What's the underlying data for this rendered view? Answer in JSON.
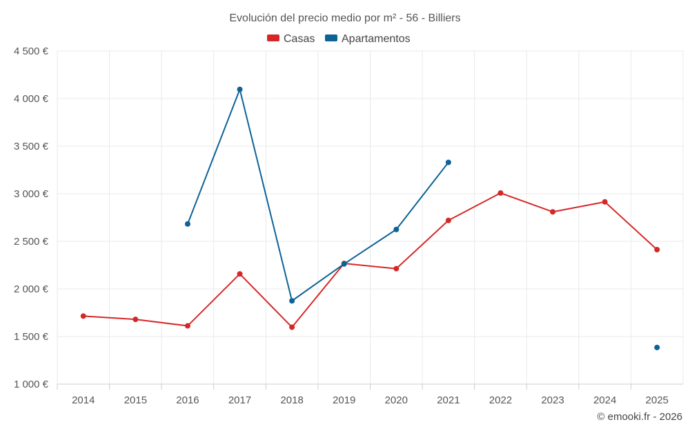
{
  "chart_data": {
    "type": "line",
    "title": "Evolución del precio medio por m² - 56 - Billiers",
    "categories": [
      "2014",
      "2015",
      "2016",
      "2017",
      "2018",
      "2019",
      "2020",
      "2021",
      "2022",
      "2023",
      "2024",
      "2025"
    ],
    "series": [
      {
        "name": "Casas",
        "color": "#d62728",
        "values": [
          1715,
          1680,
          1612,
          2158,
          1598,
          2268,
          2213,
          2720,
          3008,
          2810,
          2915,
          2413
        ]
      },
      {
        "name": "Apartamentos",
        "color": "#0d6296",
        "values": [
          null,
          null,
          2683,
          4097,
          1875,
          2263,
          2625,
          3330,
          null,
          null,
          null,
          1385
        ]
      }
    ],
    "yticks": [
      1000,
      1500,
      2000,
      2500,
      3000,
      3500,
      4000,
      4500
    ],
    "ytick_labels": [
      "1 000 €",
      "1 500 €",
      "2 000 €",
      "2 500 €",
      "3 000 €",
      "3 500 €",
      "4 000 €",
      "4 500 €"
    ],
    "ylim": [
      1000,
      4500
    ],
    "xlabel": "",
    "ylabel": "",
    "legend_position": "top-center",
    "grid": true,
    "credit": "© emooki.fr - 2026"
  }
}
